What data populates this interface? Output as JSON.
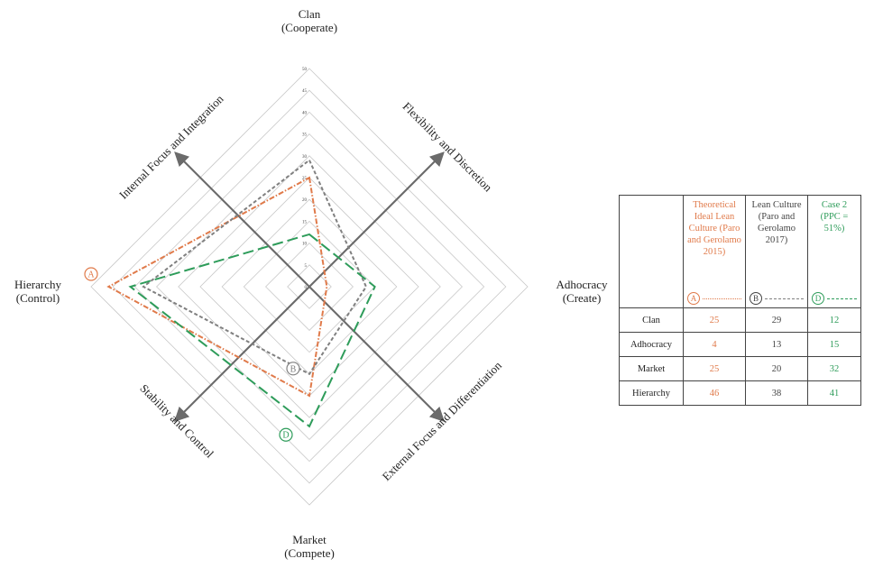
{
  "chart_data": {
    "type": "radar",
    "axes": [
      {
        "key": "clan",
        "label_lines": [
          "Clan",
          "(Cooperate)"
        ]
      },
      {
        "key": "adhocracy",
        "label_lines": [
          "Adhocracy",
          "(Create)"
        ]
      },
      {
        "key": "market",
        "label_lines": [
          "Market",
          "(Compete)"
        ]
      },
      {
        "key": "hierarchy",
        "label_lines": [
          "Hierarchy",
          "(Control)"
        ]
      }
    ],
    "scale": {
      "min": 0,
      "max": 50,
      "step": 5
    },
    "tick_labels": [
      "0",
      "5",
      "10",
      "15",
      "20",
      "25",
      "30",
      "35",
      "40",
      "45",
      "50"
    ],
    "diagonal_axes": [
      "Internal Focus and Integration",
      "Flexibility and Discretion",
      "Stability and Control",
      "External Focus and Differentiation"
    ],
    "series": [
      {
        "name": "Theoretical Ideal Lean Culture (Paro and Gerolamo 2015)",
        "marker": "A",
        "color": "#e07a4a",
        "dash": "6,2,1.5,2",
        "values": [
          25,
          4,
          25,
          46
        ]
      },
      {
        "name": "Lean Culture (Paro and Gerolamo 2017)",
        "marker": "B",
        "color": "#808080",
        "dash": "4,2.5",
        "values": [
          29,
          13,
          20,
          38
        ]
      },
      {
        "name": "Case 2 (PPC = 51%)",
        "marker": "D",
        "color": "#2e9c5a",
        "dash": "12,5",
        "values": [
          12,
          15,
          32,
          41
        ]
      }
    ]
  },
  "legend_table": {
    "headers": [
      "Theoretical Ideal Lean Culture (Paro and Gerolamo 2015)",
      "Lean Culture (Paro and Gerolamo 2017)",
      "Case 2 (PPC = 51%)"
    ],
    "markers": [
      "A",
      "B",
      "D"
    ],
    "rows": [
      {
        "label": "Clan",
        "values": [
          "25",
          "29",
          "12"
        ]
      },
      {
        "label": "Adhocracy",
        "values": [
          "4",
          "13",
          "15"
        ]
      },
      {
        "label": "Market",
        "values": [
          "25",
          "20",
          "32"
        ]
      },
      {
        "label": "Hierarchy",
        "values": [
          "46",
          "38",
          "41"
        ]
      }
    ]
  }
}
